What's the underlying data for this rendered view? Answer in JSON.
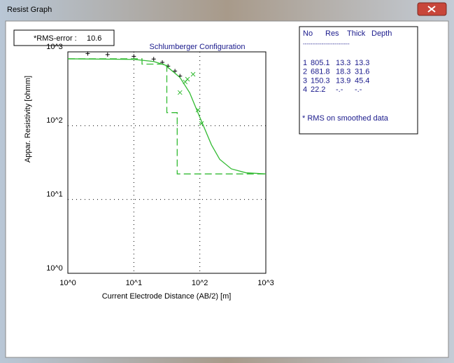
{
  "window": {
    "title": "Resist Graph"
  },
  "rms": {
    "label": "*RMS-error :",
    "value": 10.6
  },
  "table": {
    "header": [
      "No",
      "Res",
      "Thick",
      "Depth"
    ],
    "separator": "-------------------------",
    "rows": [
      [
        1,
        805.1,
        13.3,
        13.3
      ],
      [
        2,
        681.8,
        18.3,
        31.6
      ],
      [
        3,
        150.3,
        13.9,
        45.4
      ],
      [
        4,
        22.2,
        "-.-",
        "-.-"
      ]
    ],
    "note": "* RMS on smoothed data"
  },
  "chart_data": {
    "type": "line",
    "title": "Schlumberger Configuration",
    "x_label": "Current Electrode Distance (AB/2) [m]",
    "y_label": "Appar. Resistivity [ohmm]",
    "xscale": "log",
    "yscale": "log",
    "xlim": [
      1,
      1000
    ],
    "ylim": [
      1,
      1000
    ],
    "xticks": [
      {
        "value": 1,
        "label": "10^0"
      },
      {
        "value": 10,
        "label": "10^1"
      },
      {
        "value": 100,
        "label": "10^2"
      },
      {
        "value": 1000,
        "label": "10^3"
      }
    ],
    "yticks": [
      {
        "value": 1,
        "label": "10^0"
      },
      {
        "value": 10,
        "label": "10^1"
      },
      {
        "value": 100,
        "label": "10^2"
      },
      {
        "value": 1000,
        "label": "10^3"
      }
    ],
    "grid": true,
    "series": [
      {
        "style": "points",
        "marker": "+",
        "color": "#000000",
        "x": [
          2,
          4,
          10,
          20,
          27,
          33,
          42,
          50
        ],
        "values": [
          950,
          920,
          870,
          800,
          720,
          640,
          550,
          470
        ]
      },
      {
        "style": "points",
        "marker": "x",
        "color": "#33bb33",
        "x": [
          50,
          60,
          65,
          79,
          94,
          106
        ],
        "values": [
          281,
          391,
          426,
          497,
          163,
          107
        ]
      },
      {
        "style": "solid",
        "color": "#33bb33",
        "x": [
          1,
          10,
          20,
          30,
          50,
          70,
          100,
          150,
          200,
          300,
          500,
          1000
        ],
        "values": [
          805,
          790,
          740,
          660,
          450,
          280,
          130,
          55,
          35,
          26,
          23,
          22.2
        ]
      },
      {
        "style": "dashed",
        "color": "#33bb33",
        "x": [
          1,
          13.3,
          13.3,
          31.6,
          31.6,
          45.4,
          45.4,
          1000
        ],
        "values": [
          805.1,
          805.1,
          681.8,
          681.8,
          150.3,
          150.3,
          22.2,
          22.2
        ]
      }
    ]
  }
}
